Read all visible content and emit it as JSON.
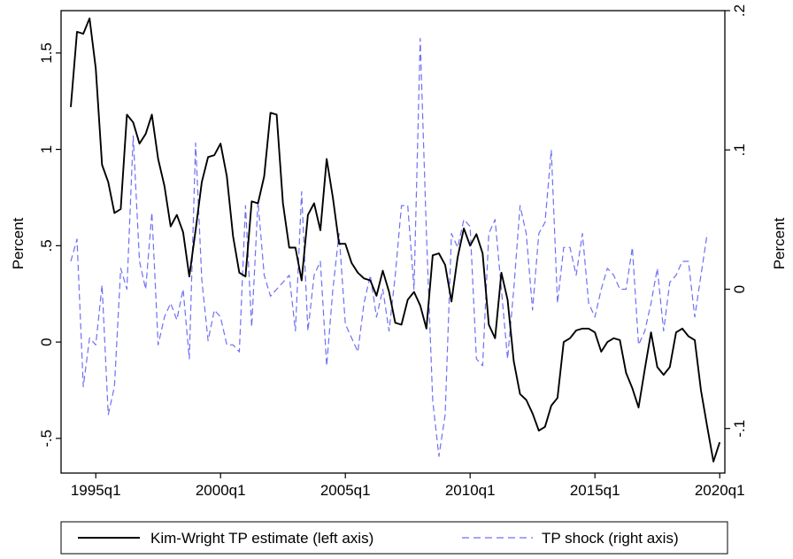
{
  "chart_data": {
    "type": "line",
    "title": "",
    "xlabel": "",
    "y_left_label": "Percent",
    "y_right_label": "Percent",
    "x_start": "1994q1",
    "x_ticks": [
      "1995q1",
      "2000q1",
      "2005q1",
      "2010q1",
      "2015q1",
      "2020q1"
    ],
    "y_left_ticks": [
      "-.5",
      "0",
      ".5",
      "1",
      "1.5"
    ],
    "y_left_tick_values": [
      -0.5,
      0,
      0.5,
      1,
      1.5
    ],
    "y_left_range": [
      -0.68,
      1.72
    ],
    "y_right_ticks": [
      "-.1",
      "0",
      ".1",
      ".2"
    ],
    "y_right_tick_values": [
      -0.1,
      0,
      0.1,
      0.2
    ],
    "y_right_range": [
      -0.132,
      0.2
    ],
    "legend_position": "bottom",
    "series": [
      {
        "name": "Kim-Wright TP estimate (left axis)",
        "axis": "left",
        "color": "#000000",
        "dash": "solid",
        "values": [
          1.22,
          1.61,
          1.6,
          1.68,
          1.42,
          0.92,
          0.83,
          0.67,
          0.69,
          1.18,
          1.14,
          1.03,
          1.08,
          1.18,
          0.95,
          0.81,
          0.6,
          0.66,
          0.57,
          0.34,
          0.58,
          0.83,
          0.96,
          0.97,
          1.03,
          0.86,
          0.55,
          0.36,
          0.34,
          0.73,
          0.72,
          0.86,
          1.19,
          1.18,
          0.72,
          0.49,
          0.49,
          0.32,
          0.66,
          0.72,
          0.58,
          0.95,
          0.75,
          0.51,
          0.51,
          0.41,
          0.36,
          0.33,
          0.32,
          0.24,
          0.37,
          0.26,
          0.1,
          0.09,
          0.22,
          0.26,
          0.19,
          0.07,
          0.45,
          0.46,
          0.4,
          0.21,
          0.44,
          0.59,
          0.5,
          0.56,
          0.46,
          0.09,
          0.02,
          0.36,
          0.22,
          -0.1,
          -0.27,
          -0.3,
          -0.37,
          -0.46,
          -0.44,
          -0.33,
          -0.29,
          0.0,
          0.02,
          0.06,
          0.07,
          0.07,
          0.05,
          -0.05,
          0.0,
          0.02,
          0.01,
          -0.16,
          -0.24,
          -0.34,
          -0.14,
          0.05,
          -0.13,
          -0.17,
          -0.13,
          0.05,
          0.07,
          0.03,
          0.01,
          -0.25,
          -0.44,
          -0.62,
          -0.52
        ]
      },
      {
        "name": "TP shock (right axis)",
        "axis": "right",
        "color": "#6f6ff5",
        "dash": "dashed",
        "values": [
          0.02,
          0.036,
          -0.07,
          -0.035,
          -0.04,
          0.003,
          -0.09,
          -0.07,
          0.015,
          0.0,
          0.11,
          0.02,
          0.0,
          0.055,
          -0.04,
          -0.02,
          -0.01,
          -0.022,
          0.0,
          -0.05,
          0.105,
          0.007,
          -0.037,
          -0.015,
          -0.02,
          -0.04,
          -0.04,
          -0.045,
          0.06,
          -0.027,
          0.063,
          0.01,
          -0.005,
          0.0,
          0.005,
          0.01,
          -0.03,
          0.07,
          -0.03,
          0.01,
          0.02,
          -0.055,
          0.0,
          0.04,
          -0.025,
          -0.035,
          -0.045,
          -0.01,
          0.01,
          -0.02,
          0.0,
          -0.03,
          0.01,
          0.06,
          0.06,
          0.0,
          0.18,
          0.04,
          -0.08,
          -0.12,
          -0.09,
          0.04,
          0.03,
          0.05,
          0.045,
          -0.05,
          -0.055,
          0.04,
          0.05,
          0.0,
          -0.05,
          0.0,
          0.06,
          0.04,
          -0.015,
          0.04,
          0.048,
          0.1,
          -0.01,
          0.03,
          0.03,
          0.01,
          0.04,
          -0.01,
          -0.02,
          0.0,
          0.015,
          0.01,
          0.0,
          0.0,
          0.03,
          -0.04,
          -0.03,
          -0.01,
          0.015,
          -0.03,
          0.005,
          0.01,
          0.02,
          0.02,
          -0.02,
          0.01,
          0.04
        ]
      }
    ]
  }
}
